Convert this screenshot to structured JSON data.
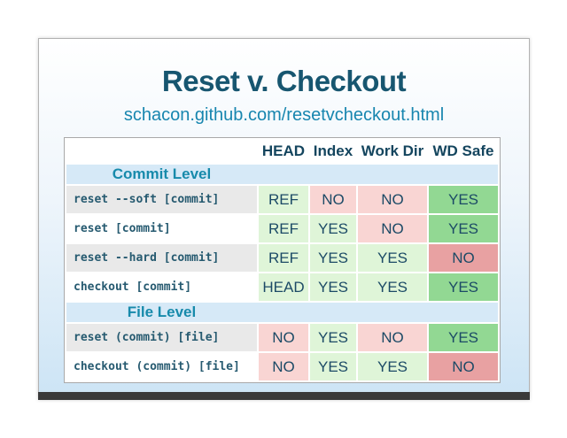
{
  "slide": {
    "title": "Reset v. Checkout",
    "subtitle": "schacon.github.com/resetvcheckout.html"
  },
  "table": {
    "columns": [
      "",
      "HEAD",
      "Index",
      "Work Dir",
      "WD Safe"
    ],
    "sections": [
      {
        "label": "Commit Level",
        "rows": [
          {
            "command": "reset --soft [commit]",
            "cells": [
              {
                "text": "REF",
                "tone": "green-light"
              },
              {
                "text": "NO",
                "tone": "red-light"
              },
              {
                "text": "NO",
                "tone": "red-light"
              },
              {
                "text": "YES",
                "tone": "green"
              }
            ]
          },
          {
            "command": "reset [commit]",
            "cells": [
              {
                "text": "REF",
                "tone": "green-light"
              },
              {
                "text": "YES",
                "tone": "green-light"
              },
              {
                "text": "NO",
                "tone": "red-light"
              },
              {
                "text": "YES",
                "tone": "green"
              }
            ]
          },
          {
            "command": "reset --hard [commit]",
            "cells": [
              {
                "text": "REF",
                "tone": "green-light"
              },
              {
                "text": "YES",
                "tone": "green-light"
              },
              {
                "text": "YES",
                "tone": "green-light"
              },
              {
                "text": "NO",
                "tone": "red"
              }
            ]
          },
          {
            "command": "checkout [commit]",
            "cells": [
              {
                "text": "HEAD",
                "tone": "green-light"
              },
              {
                "text": "YES",
                "tone": "green-light"
              },
              {
                "text": "YES",
                "tone": "green-light"
              },
              {
                "text": "YES",
                "tone": "green"
              }
            ]
          }
        ]
      },
      {
        "label": "File Level",
        "rows": [
          {
            "command": "reset (commit) [file]",
            "cells": [
              {
                "text": "NO",
                "tone": "red-light"
              },
              {
                "text": "YES",
                "tone": "green-light"
              },
              {
                "text": "NO",
                "tone": "red-light"
              },
              {
                "text": "YES",
                "tone": "green"
              }
            ]
          },
          {
            "command": "checkout (commit) [file]",
            "cells": [
              {
                "text": "NO",
                "tone": "red-light"
              },
              {
                "text": "YES",
                "tone": "green-light"
              },
              {
                "text": "YES",
                "tone": "green-light"
              },
              {
                "text": "NO",
                "tone": "red"
              }
            ]
          }
        ]
      }
    ]
  },
  "colors": {
    "title": "#175670",
    "url": "#1886af",
    "header-text": "#14455e",
    "value-text": "#1c4a66",
    "command-text": "#265a70",
    "section-text": "#178aab",
    "section-bg": "#d6e9f7",
    "row-shaded-bg": "#e9e9e9",
    "green-light": "#dff5d8",
    "red-light": "#f9d5d3",
    "green-strong": "#92d893",
    "red-strong": "#e8a1a2",
    "slide-top": "#ffffff",
    "slide-bottom": "#cce4f5",
    "bottom-bar": "#3a3a3a",
    "table-border": "#a9a9a9"
  }
}
